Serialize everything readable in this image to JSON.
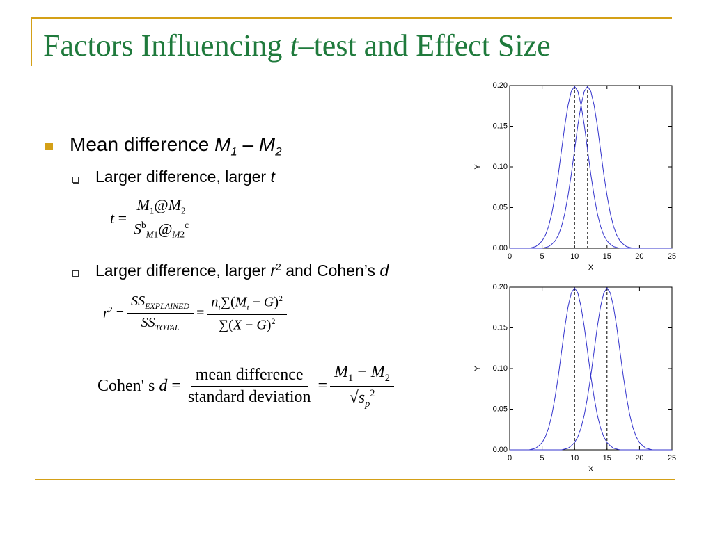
{
  "title": [
    {
      "text": "Factors Influencing "
    },
    {
      "text": "t",
      "style": "i"
    },
    {
      "text": "–test and Effect Size"
    }
  ],
  "bullets": [
    {
      "level": 1,
      "runs": [
        {
          "text": "Mean difference "
        },
        {
          "text": "M",
          "style": "i"
        },
        {
          "text": "1",
          "style": "isub"
        },
        {
          "text": " – "
        },
        {
          "text": "M",
          "style": "i"
        },
        {
          "text": "2",
          "style": "isub"
        }
      ]
    },
    {
      "level": 2,
      "runs": [
        {
          "text": "Larger difference, larger "
        },
        {
          "text": "t",
          "style": "i"
        }
      ]
    },
    {
      "level": 2,
      "runs": [
        {
          "text": "Larger difference, larger "
        },
        {
          "text": "r",
          "style": "i"
        },
        {
          "text": "2",
          "style": "sup"
        },
        {
          "text": " and Cohen’s "
        },
        {
          "text": "d",
          "style": "i"
        }
      ]
    }
  ],
  "formulas": [
    {
      "parts": [
        {
          "runs": [
            {
              "text": "t",
              "style": "i"
            },
            {
              "text": " = "
            }
          ]
        },
        {
          "num": [
            {
              "text": "M",
              "style": "i"
            },
            {
              "text": "1",
              "style": "sub"
            },
            {
              "text": "@"
            },
            {
              "text": "M",
              "style": "i"
            },
            {
              "text": "2",
              "style": "sub"
            }
          ],
          "den": [
            {
              "text": "S",
              "style": "i"
            },
            {
              "text": "b",
              "style": "sup"
            },
            {
              "text": "M",
              "style": "isub"
            },
            {
              "text": "1",
              "style": "sub"
            },
            {
              "text": "@"
            },
            {
              "text": "M",
              "style": "isub"
            },
            {
              "text": "2",
              "style": "sub"
            },
            {
              "text": "c",
              "style": "sup"
            }
          ]
        }
      ]
    },
    {
      "parts": [
        {
          "runs": [
            {
              "text": "r",
              "style": "i"
            },
            {
              "text": "2",
              "style": "sup"
            },
            {
              "text": " = "
            }
          ]
        },
        {
          "num": [
            {
              "text": "SS",
              "style": "i"
            },
            {
              "text": "EXPLAINED",
              "style": "isub"
            }
          ],
          "den": [
            {
              "text": "SS",
              "style": "i"
            },
            {
              "text": "TOTAL",
              "style": "isub"
            }
          ]
        },
        {
          "runs": [
            {
              "text": " = "
            }
          ]
        },
        {
          "num": [
            {
              "text": "n",
              "style": "i"
            },
            {
              "text": "i",
              "style": "isub"
            },
            {
              "text": "∑("
            },
            {
              "text": "M",
              "style": "i"
            },
            {
              "text": "i",
              "style": "isub"
            },
            {
              "text": " − "
            },
            {
              "text": "G",
              "style": "i"
            },
            {
              "text": ")"
            },
            {
              "text": "2",
              "style": "sup"
            }
          ],
          "den": [
            {
              "text": "∑("
            },
            {
              "text": "X",
              "style": "i"
            },
            {
              "text": " − "
            },
            {
              "text": "G",
              "style": "i"
            },
            {
              "text": ")"
            },
            {
              "text": "2",
              "style": "sup"
            }
          ]
        }
      ]
    },
    {
      "parts": [
        {
          "runs": [
            {
              "text": "Cohen' s "
            },
            {
              "text": "d",
              "style": "i"
            },
            {
              "text": " = "
            }
          ]
        },
        {
          "num": [
            {
              "text": "mean difference"
            }
          ],
          "den": [
            {
              "text": "standard deviation"
            }
          ]
        },
        {
          "runs": [
            {
              "text": " = "
            }
          ]
        },
        {
          "num": [
            {
              "text": "M",
              "style": "i"
            },
            {
              "text": "1",
              "style": "sub"
            },
            {
              "text": " − "
            },
            {
              "text": "M",
              "style": "i"
            },
            {
              "text": "2",
              "style": "sub"
            }
          ],
          "den": [
            {
              "text": "√"
            },
            {
              "text": "s",
              "style": "i"
            },
            {
              "text": "p",
              "style": "isub"
            },
            {
              "text": "2",
              "style": "sup"
            }
          ]
        }
      ]
    }
  ],
  "chart_data": [
    {
      "type": "line",
      "xlabel": "X",
      "ylabel": "Y",
      "xlim": [
        0,
        25
      ],
      "ylim": [
        0,
        0.2
      ],
      "xticks": [
        0,
        5,
        10,
        15,
        20,
        25
      ],
      "yticks": [
        {
          "value": 0,
          "label": "0.00"
        },
        {
          "value": 0.05,
          "label": "0.05"
        },
        {
          "value": 0.1,
          "label": "0.10"
        },
        {
          "value": 0.15,
          "label": "0.15"
        },
        {
          "value": 0.2,
          "label": "0.20"
        }
      ],
      "vlines": [
        10,
        12
      ],
      "vline_color": "#000000",
      "x": [
        0,
        0.5,
        1,
        1.5,
        2,
        2.5,
        3,
        3.5,
        4,
        4.5,
        5,
        5.5,
        6,
        6.5,
        7,
        7.5,
        8,
        8.5,
        9,
        9.5,
        10,
        10.5,
        11,
        11.5,
        12,
        12.5,
        13,
        13.5,
        14,
        14.5,
        15,
        15.5,
        16,
        16.5,
        17,
        17.5,
        18,
        18.5,
        19,
        19.5,
        20,
        20.5,
        21,
        21.5,
        22,
        22.5,
        23,
        23.5,
        24,
        24.5,
        25
      ],
      "series": [
        {
          "color": "#3333cc",
          "values": [
            0,
            0,
            0,
            0,
            0,
            0,
            0,
            0.001,
            0.002,
            0.005,
            0.009,
            0.016,
            0.027,
            0.043,
            0.065,
            0.091,
            0.121,
            0.151,
            0.176,
            0.193,
            0.199,
            0.193,
            0.176,
            0.151,
            0.121,
            0.091,
            0.065,
            0.043,
            0.027,
            0.016,
            0.009,
            0.005,
            0.002,
            0.001,
            0,
            0,
            0,
            0,
            0,
            0,
            0,
            0,
            0,
            0,
            0,
            0,
            0,
            0,
            0,
            0,
            0
          ]
        },
        {
          "color": "#3333cc",
          "values": [
            0,
            0,
            0,
            0,
            0,
            0,
            0,
            0,
            0,
            0,
            0,
            0.001,
            0.002,
            0.005,
            0.009,
            0.016,
            0.027,
            0.043,
            0.065,
            0.091,
            0.121,
            0.151,
            0.176,
            0.193,
            0.199,
            0.193,
            0.176,
            0.151,
            0.121,
            0.091,
            0.065,
            0.043,
            0.027,
            0.016,
            0.009,
            0.005,
            0.002,
            0.001,
            0,
            0,
            0,
            0,
            0,
            0,
            0,
            0,
            0,
            0,
            0,
            0,
            0
          ]
        }
      ]
    },
    {
      "type": "line",
      "xlabel": "X",
      "ylabel": "Y",
      "xlim": [
        0,
        25
      ],
      "ylim": [
        0,
        0.2
      ],
      "xticks": [
        0,
        5,
        10,
        15,
        20,
        25
      ],
      "yticks": [
        {
          "value": 0,
          "label": "0.00"
        },
        {
          "value": 0.05,
          "label": "0.05"
        },
        {
          "value": 0.1,
          "label": "0.10"
        },
        {
          "value": 0.15,
          "label": "0.15"
        },
        {
          "value": 0.2,
          "label": "0.20"
        }
      ],
      "vlines": [
        10,
        15
      ],
      "vline_color": "#000000",
      "x": [
        0,
        0.5,
        1,
        1.5,
        2,
        2.5,
        3,
        3.5,
        4,
        4.5,
        5,
        5.5,
        6,
        6.5,
        7,
        7.5,
        8,
        8.5,
        9,
        9.5,
        10,
        10.5,
        11,
        11.5,
        12,
        12.5,
        13,
        13.5,
        14,
        14.5,
        15,
        15.5,
        16,
        16.5,
        17,
        17.5,
        18,
        18.5,
        19,
        19.5,
        20,
        20.5,
        21,
        21.5,
        22,
        22.5,
        23,
        23.5,
        24,
        24.5,
        25
      ],
      "series": [
        {
          "color": "#3333cc",
          "values": [
            0,
            0,
            0,
            0,
            0,
            0,
            0,
            0.001,
            0.002,
            0.005,
            0.009,
            0.016,
            0.027,
            0.043,
            0.065,
            0.091,
            0.121,
            0.151,
            0.176,
            0.193,
            0.199,
            0.193,
            0.176,
            0.151,
            0.121,
            0.091,
            0.065,
            0.043,
            0.027,
            0.016,
            0.009,
            0.005,
            0.002,
            0.001,
            0,
            0,
            0,
            0,
            0,
            0,
            0,
            0,
            0,
            0,
            0,
            0,
            0,
            0,
            0,
            0,
            0
          ]
        },
        {
          "color": "#3333cc",
          "values": [
            0,
            0,
            0,
            0,
            0,
            0,
            0,
            0,
            0,
            0,
            0,
            0,
            0,
            0,
            0,
            0,
            0,
            0.001,
            0.002,
            0.005,
            0.009,
            0.016,
            0.027,
            0.043,
            0.065,
            0.091,
            0.121,
            0.151,
            0.176,
            0.193,
            0.199,
            0.193,
            0.176,
            0.151,
            0.121,
            0.091,
            0.065,
            0.043,
            0.027,
            0.016,
            0.009,
            0.005,
            0.002,
            0.001,
            0,
            0,
            0,
            0,
            0,
            0,
            0
          ]
        }
      ]
    }
  ]
}
